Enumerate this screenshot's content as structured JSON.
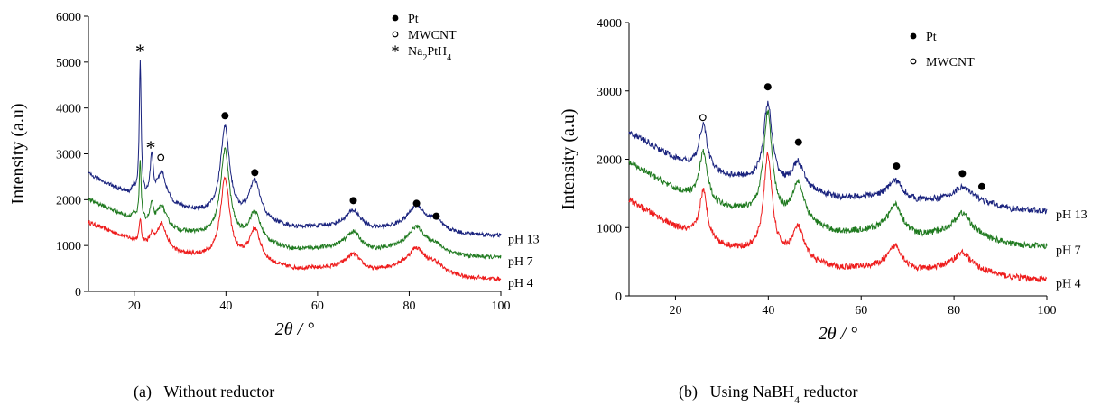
{
  "chart_data": [
    {
      "type": "line",
      "caption": {
        "prefix": "(a)",
        "text": "Without reductor"
      },
      "xlabel": "2θ / °",
      "ylabel": "Intensity (a.u)",
      "xlim": [
        10,
        100
      ],
      "ylim": [
        0,
        6000
      ],
      "xticks": [
        20,
        40,
        60,
        80,
        100
      ],
      "yticks": [
        0,
        1000,
        2000,
        3000,
        4000,
        5000,
        6000
      ],
      "legend_position": "top-right",
      "legend": [
        {
          "symbol": "filled-circle",
          "label": "Pt"
        },
        {
          "symbol": "open-circle",
          "label": "MWCNT"
        },
        {
          "symbol": "asterisk",
          "label": "Na2PtH4"
        }
      ],
      "series": [
        {
          "name": "pH 4",
          "color": "#ee1c1c",
          "base": [
            [
              10,
              1500
            ],
            [
              20,
              1100
            ],
            [
              30,
              800
            ],
            [
              38,
              720
            ],
            [
              55,
              480
            ],
            [
              65,
              500
            ],
            [
              72,
              420
            ],
            [
              78,
              520
            ],
            [
              85,
              470
            ],
            [
              92,
              300
            ],
            [
              100,
              260
            ]
          ],
          "peaks": [
            [
              21.3,
              500,
              0.25
            ],
            [
              23.8,
              180,
              0.4
            ],
            [
              26,
              550,
              1.2
            ],
            [
              39.8,
              1750,
              1.2
            ],
            [
              46.3,
              720,
              1.5
            ],
            [
              67.8,
              330,
              2.0
            ],
            [
              81.6,
              440,
              2.2
            ],
            [
              85.8,
              120,
              1.5
            ]
          ]
        },
        {
          "name": "pH 7",
          "color": "#1f7a1f",
          "base": [
            [
              10,
              2000
            ],
            [
              20,
              1550
            ],
            [
              30,
              1280
            ],
            [
              38,
              1180
            ],
            [
              55,
              900
            ],
            [
              65,
              940
            ],
            [
              72,
              860
            ],
            [
              78,
              940
            ],
            [
              85,
              880
            ],
            [
              92,
              760
            ],
            [
              100,
              730
            ]
          ],
          "peaks": [
            [
              19.8,
              120,
              0.4
            ],
            [
              21.3,
              1300,
              0.25
            ],
            [
              23.8,
              400,
              0.4
            ],
            [
              26,
              450,
              1.2
            ],
            [
              39.8,
              1900,
              1.2
            ],
            [
              46.3,
              650,
              1.5
            ],
            [
              67.8,
              380,
              2.0
            ],
            [
              81.6,
              480,
              2.2
            ],
            [
              85.8,
              120,
              1.5
            ]
          ]
        },
        {
          "name": "pH 13",
          "color": "#1a237e",
          "base": [
            [
              10,
              2550
            ],
            [
              20,
              2050
            ],
            [
              30,
              1800
            ],
            [
              38,
              1640
            ],
            [
              55,
              1380
            ],
            [
              65,
              1400
            ],
            [
              72,
              1320
            ],
            [
              78,
              1380
            ],
            [
              85,
              1340
            ],
            [
              92,
              1240
            ],
            [
              100,
              1210
            ]
          ],
          "peaks": [
            [
              19.8,
              180,
              0.4
            ],
            [
              21.3,
              2950,
              0.25
            ],
            [
              23.8,
              900,
              0.4
            ],
            [
              26,
              650,
              1.2
            ],
            [
              39.8,
              1950,
              1.2
            ],
            [
              46.3,
              850,
              1.5
            ],
            [
              67.8,
              380,
              2.0
            ],
            [
              81.6,
              500,
              2.2
            ],
            [
              85.8,
              180,
              1.5
            ]
          ]
        }
      ],
      "markers": [
        {
          "symbol": "asterisk",
          "x": 21.3,
          "y": 5250
        },
        {
          "symbol": "asterisk",
          "x": 23.6,
          "y": 3150
        },
        {
          "symbol": "open-circle",
          "x": 25.8,
          "y": 2920
        },
        {
          "symbol": "filled-circle",
          "x": 39.8,
          "y": 3830
        },
        {
          "symbol": "filled-circle",
          "x": 46.3,
          "y": 2590
        },
        {
          "symbol": "filled-circle",
          "x": 67.8,
          "y": 1980
        },
        {
          "symbol": "filled-circle",
          "x": 81.6,
          "y": 1920
        },
        {
          "symbol": "filled-circle",
          "x": 85.9,
          "y": 1640
        }
      ]
    },
    {
      "type": "line",
      "caption": {
        "prefix": "(b)",
        "text": "Using NaBH4 reductor"
      },
      "xlabel": "2θ / °",
      "ylabel": "Intensity (a.u)",
      "xlim": [
        10,
        100
      ],
      "ylim": [
        0,
        4000
      ],
      "xticks": [
        20,
        40,
        60,
        80,
        100
      ],
      "yticks": [
        0,
        1000,
        2000,
        3000,
        4000
      ],
      "legend_position": "top-right",
      "legend": [
        {
          "symbol": "filled-circle",
          "label": "Pt"
        },
        {
          "symbol": "open-circle",
          "label": "MWCNT"
        }
      ],
      "series": [
        {
          "name": "pH 4",
          "color": "#ee1c1c",
          "base": [
            [
              10,
              1400
            ],
            [
              20,
              1000
            ],
            [
              30,
              720
            ],
            [
              38,
              620
            ],
            [
              55,
              400
            ],
            [
              65,
              420
            ],
            [
              72,
              350
            ],
            [
              78,
              400
            ],
            [
              85,
              360
            ],
            [
              92,
              270
            ],
            [
              100,
              230
            ]
          ],
          "peaks": [
            [
              26,
              700,
              1.0
            ],
            [
              39.9,
              1450,
              1.1
            ],
            [
              46.4,
              470,
              1.5
            ],
            [
              67.4,
              330,
              1.8
            ],
            [
              81.8,
              250,
              2.2
            ]
          ]
        },
        {
          "name": "pH 7",
          "color": "#1f7a1f",
          "base": [
            [
              10,
              1950
            ],
            [
              20,
              1550
            ],
            [
              30,
              1300
            ],
            [
              38,
              1200
            ],
            [
              55,
              920
            ],
            [
              65,
              960
            ],
            [
              72,
              860
            ],
            [
              78,
              900
            ],
            [
              85,
              860
            ],
            [
              92,
              750
            ],
            [
              100,
              720
            ]
          ],
          "peaks": [
            [
              26,
              700,
              1.0
            ],
            [
              39.9,
              1500,
              1.1
            ],
            [
              46.4,
              580,
              1.5
            ],
            [
              67.4,
              400,
              1.8
            ],
            [
              81.8,
              330,
              2.2
            ]
          ]
        },
        {
          "name": "pH 13",
          "color": "#1a237e",
          "base": [
            [
              10,
              2400
            ],
            [
              20,
              2000
            ],
            [
              30,
              1760
            ],
            [
              38,
              1680
            ],
            [
              55,
              1430
            ],
            [
              65,
              1450
            ],
            [
              72,
              1380
            ],
            [
              78,
              1400
            ],
            [
              85,
              1380
            ],
            [
              92,
              1270
            ],
            [
              100,
              1240
            ]
          ],
          "peaks": [
            [
              26,
              650,
              1.0
            ],
            [
              39.9,
              1150,
              1.1
            ],
            [
              46.4,
              380,
              1.5
            ],
            [
              67.4,
              260,
              1.8
            ],
            [
              81.8,
              200,
              2.2
            ]
          ]
        }
      ],
      "markers": [
        {
          "symbol": "open-circle",
          "x": 25.9,
          "y": 2610
        },
        {
          "symbol": "filled-circle",
          "x": 39.9,
          "y": 3060
        },
        {
          "symbol": "filled-circle",
          "x": 46.5,
          "y": 2250
        },
        {
          "symbol": "filled-circle",
          "x": 67.6,
          "y": 1900
        },
        {
          "symbol": "filled-circle",
          "x": 81.8,
          "y": 1790
        },
        {
          "symbol": "filled-circle",
          "x": 86.0,
          "y": 1600
        }
      ]
    }
  ]
}
